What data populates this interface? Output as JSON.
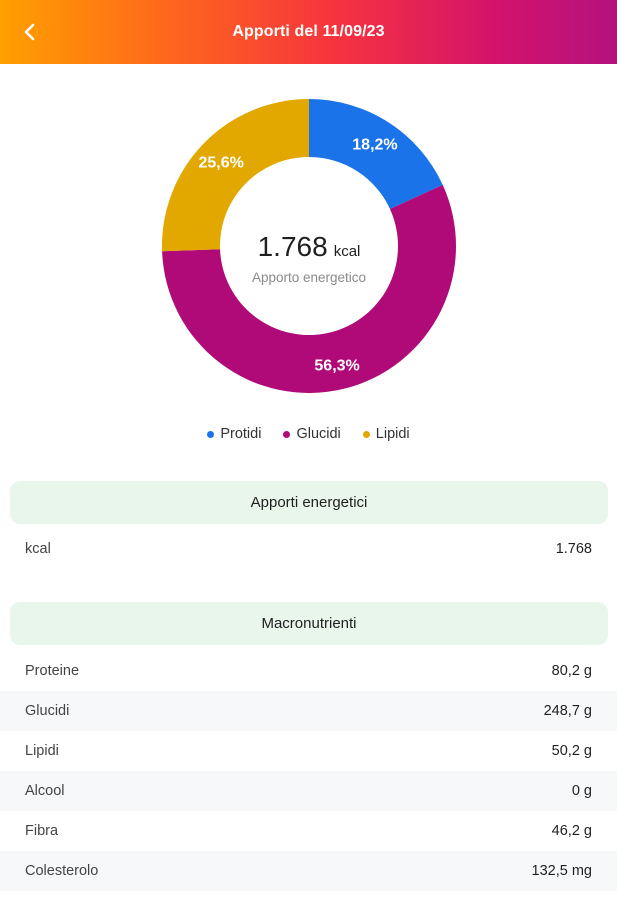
{
  "header": {
    "title": "Apporti del 11/09/23",
    "back_icon": "chevron-left-icon"
  },
  "chart_data": {
    "type": "pie",
    "variant": "donut",
    "center_value": "1.768",
    "center_unit": "kcal",
    "center_caption": "Apporto energetico",
    "slices": [
      {
        "name": "Protidi",
        "value": 18.2,
        "label": "18,2%",
        "color": "#1a73e8"
      },
      {
        "name": "Glucidi",
        "value": 56.3,
        "label": "56,3%",
        "color": "#b00a78"
      },
      {
        "name": "Lipidi",
        "value": 25.6,
        "label": "25,6%",
        "color": "#e2a800"
      }
    ],
    "legend_position": "bottom"
  },
  "legend": [
    {
      "label": "Protidi",
      "color": "#1a73e8"
    },
    {
      "label": "Glucidi",
      "color": "#b00a78"
    },
    {
      "label": "Lipidi",
      "color": "#e2a800"
    }
  ],
  "energy": {
    "title": "Apporti energetici",
    "rows": [
      {
        "label": "kcal",
        "value": "1.768"
      }
    ]
  },
  "macro": {
    "title": "Macronutrienti",
    "rows": [
      {
        "label": "Proteine",
        "value": "80,2 g"
      },
      {
        "label": "Glucidi",
        "value": "248,7 g"
      },
      {
        "label": "Lipidi",
        "value": "50,2 g"
      },
      {
        "label": "Alcool",
        "value": "0 g"
      },
      {
        "label": "Fibra",
        "value": "46,2 g"
      },
      {
        "label": "Colesterolo",
        "value": "132,5 mg"
      }
    ]
  },
  "colors": {
    "section_bg": "#e8f6ec",
    "row_shade": "#f7f8fa"
  }
}
